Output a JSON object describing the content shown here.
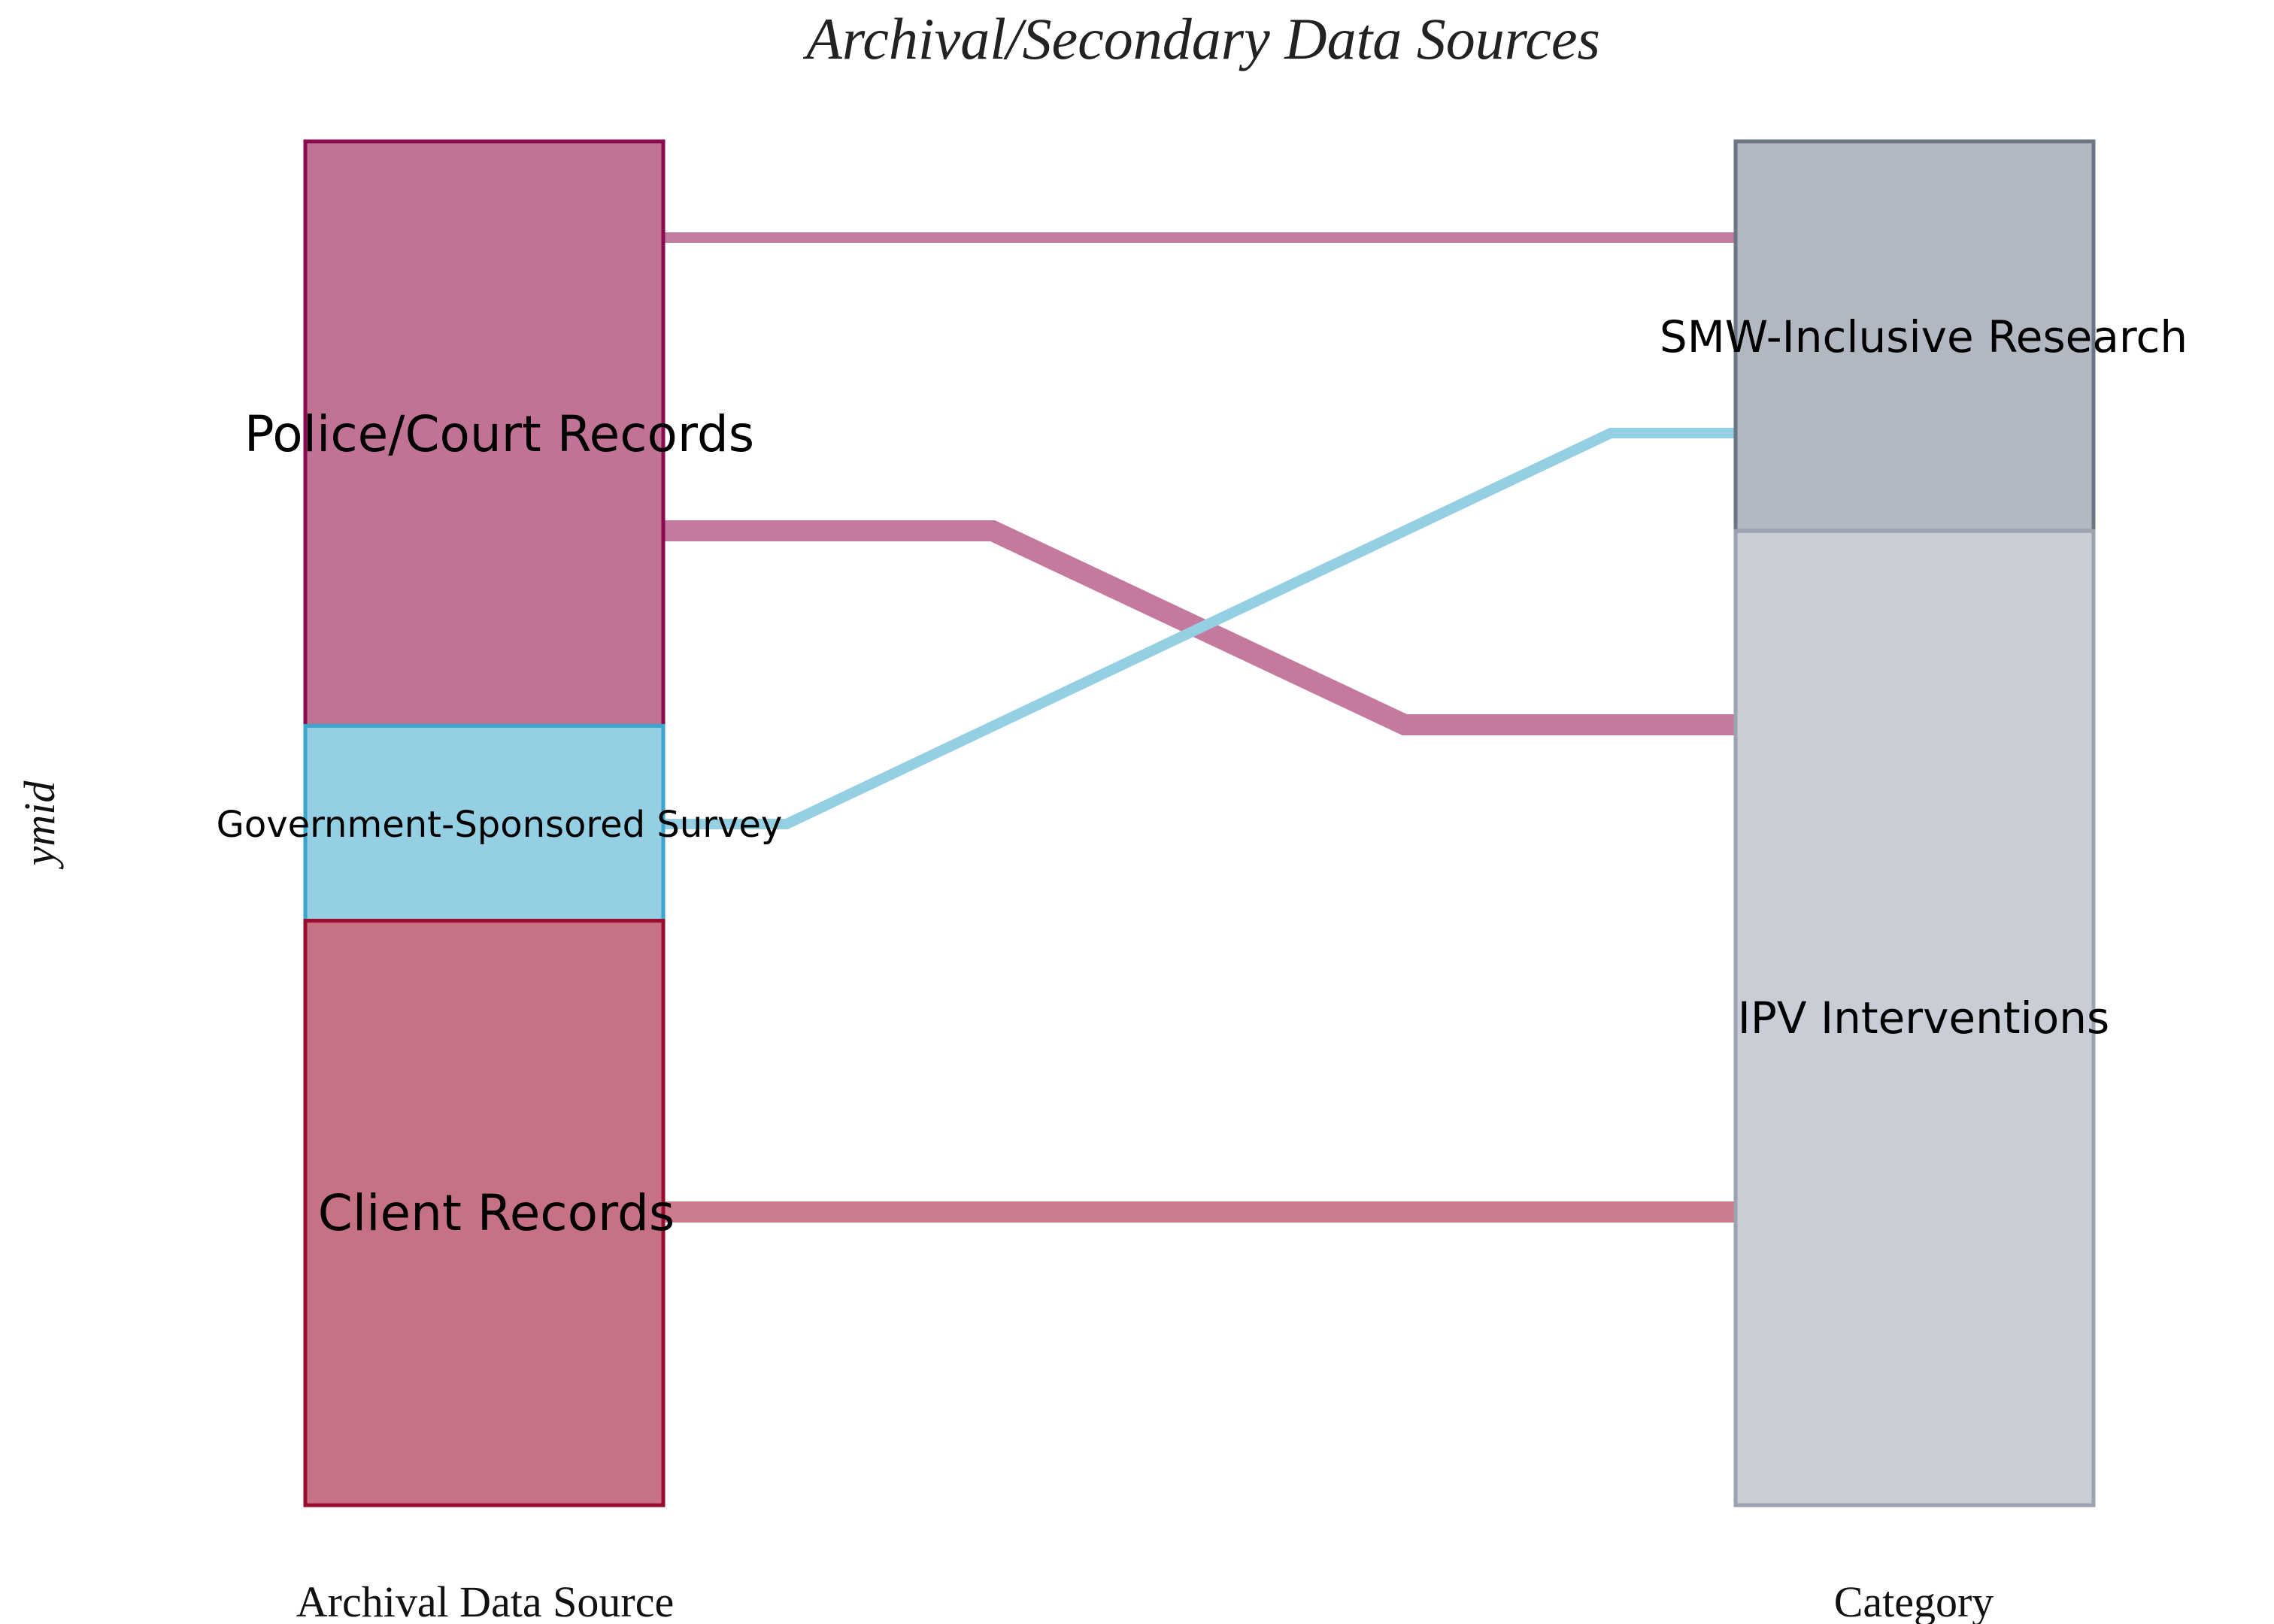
{
  "chart_data": {
    "type": "sankey",
    "title": "Archival/Secondary Data Sources",
    "ylabel": "ymid",
    "axes": [
      "Archival Data Source",
      "Category"
    ],
    "nodes": [
      {
        "id": "police",
        "name": "Police/Court Records",
        "axis": 0,
        "value": 3,
        "fill": "#c17396",
        "stroke": "#8b0a50"
      },
      {
        "id": "gov",
        "name": "Government-Sponsored Survey",
        "axis": 0,
        "value": 1,
        "fill": "#95cfe4",
        "stroke": "#3aa6cd"
      },
      {
        "id": "client",
        "name": "Client Records",
        "axis": 0,
        "value": 3,
        "fill": "#c77284",
        "stroke": "#9b0d2e"
      },
      {
        "id": "smw",
        "name": "SMW-Inclusive Research",
        "axis": 1,
        "value": 2,
        "fill": "#b1b8c1",
        "stroke": "#6b7685"
      },
      {
        "id": "ipv",
        "name": "IPV Interventions",
        "axis": 1,
        "value": 5,
        "fill": "#c9ced6",
        "stroke": "#9aa3af"
      }
    ],
    "links": [
      {
        "source": "police",
        "target": "smw",
        "value": 1,
        "color": "#c17da0",
        "width": "thin"
      },
      {
        "source": "police",
        "target": "ipv",
        "value": 2,
        "color": "#c47a9e",
        "width": "thick"
      },
      {
        "source": "gov",
        "target": "smw",
        "value": 1,
        "color": "#95cfe4",
        "width": "thin"
      },
      {
        "source": "client",
        "target": "ipv",
        "value": 3,
        "color": "#cc7b8c",
        "width": "thick"
      }
    ]
  }
}
